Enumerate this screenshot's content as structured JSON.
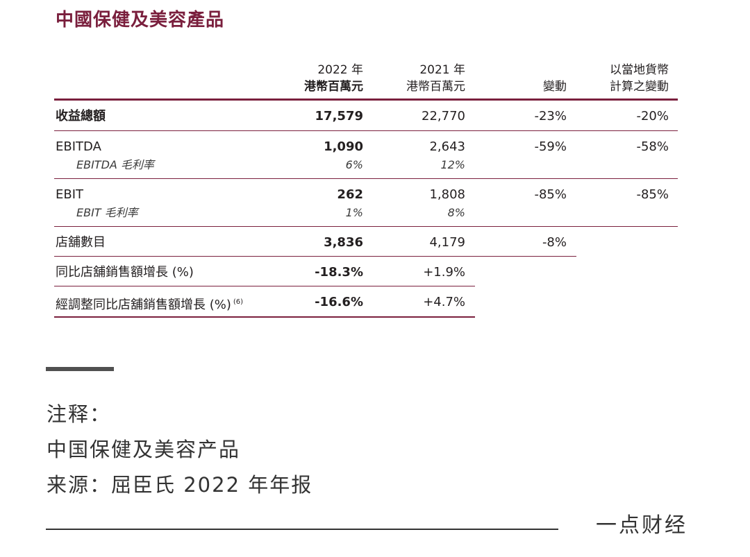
{
  "title": "中國保健及美容產品",
  "table": {
    "headers": {
      "col2022_year": "2022 年",
      "col2022_unit": "港幣百萬元",
      "col2021_year": "2021 年",
      "col2021_unit": "港幣百萬元",
      "change": "變動",
      "local_line1": "以當地貨幣",
      "local_line2": "計算之變動"
    },
    "rows": {
      "revenue": {
        "label": "收益總額",
        "v2022": "17,579",
        "v2021": "22,770",
        "change": "-23%",
        "local": "-20%"
      },
      "ebitda": {
        "label": "EBITDA",
        "v2022": "1,090",
        "v2021": "2,643",
        "change": "-59%",
        "local": "-58%"
      },
      "ebitda_margin": {
        "label": "EBITDA 毛利率",
        "v2022": "6%",
        "v2021": "12%"
      },
      "ebit": {
        "label": "EBIT",
        "v2022": "262",
        "v2021": "1,808",
        "change": "-85%",
        "local": "-85%"
      },
      "ebit_margin": {
        "label": "EBIT 毛利率",
        "v2022": "1%",
        "v2021": "8%"
      },
      "stores": {
        "label": "店舖數目",
        "v2022": "3,836",
        "v2021": "4,179",
        "change": "-8%"
      },
      "comp_growth": {
        "label": "同比店舖銷售額增長 (%)",
        "v2022": "-18.3%",
        "v2021": "+1.9%"
      },
      "adj_comp_growth": {
        "label": "經調整同比店舖銷售額增長 (%)",
        "footnote": "(6)",
        "v2022": "-16.6%",
        "v2021": "+4.7%"
      }
    }
  },
  "notes": {
    "label": "注释：",
    "line1": "中国保健及美容产品",
    "line2": "来源：屈臣氏 2022 年年报"
  },
  "brand": "一点财经",
  "colors": {
    "accent": "#7a1f3d",
    "text": "#231f20",
    "footer_text": "#333333"
  }
}
